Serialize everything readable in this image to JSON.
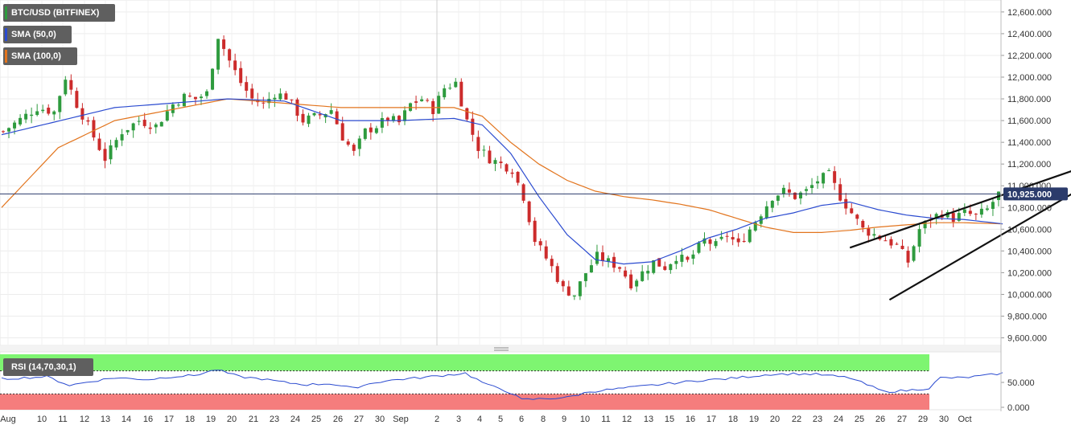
{
  "chart_data": {
    "type": "candlestick",
    "symbol": "BTC/USD (BITFINEX)",
    "legend": [
      {
        "label": "BTC/USD (BITFINEX)",
        "color": "#2e9b3e"
      },
      {
        "label": "SMA (50,0)",
        "color": "#2b4bd0"
      },
      {
        "label": "SMA (100,0)",
        "color": "#e2741d"
      }
    ],
    "last_price": "10,925.000",
    "last_price_value": 10925,
    "y_ticks": [
      "12,600.000",
      "12,400.000",
      "12,200.000",
      "12,000.000",
      "11,800.000",
      "11,600.000",
      "11,400.000",
      "11,200.000",
      "11,000.000",
      "10,800.000",
      "10,600.000",
      "10,400.000",
      "10,200.000",
      "10,000.000",
      "9,800.000",
      "9,600.000"
    ],
    "y_tick_values": [
      12600,
      12400,
      12200,
      12000,
      11800,
      11600,
      11400,
      11200,
      11000,
      10800,
      10600,
      10400,
      10200,
      10000,
      9800,
      9600
    ],
    "ylim": [
      9530,
      12710
    ],
    "x_labels": [
      "Aug",
      "10",
      "11",
      "12",
      "13",
      "14",
      "16",
      "17",
      "18",
      "19",
      "20",
      "21",
      "23",
      "24",
      "25",
      "26",
      "27",
      "30",
      "Sep",
      "2",
      "3",
      "4",
      "5",
      "6",
      "8",
      "9",
      "10",
      "11",
      "12",
      "13",
      "15",
      "16",
      "17",
      "18",
      "19",
      "20",
      "22",
      "23",
      "24",
      "25",
      "26",
      "27",
      "29",
      "30",
      "Oct"
    ],
    "price_path": [
      [
        0,
        11500
      ],
      [
        6,
        11720
      ],
      [
        9,
        11680
      ],
      [
        11,
        12000
      ],
      [
        13,
        11750
      ],
      [
        18,
        11250
      ],
      [
        21,
        11500
      ],
      [
        24,
        11600
      ],
      [
        27,
        11550
      ],
      [
        30,
        11750
      ],
      [
        32,
        11820
      ],
      [
        34,
        11800
      ],
      [
        36,
        11850
      ],
      [
        38,
        12380
      ],
      [
        40,
        12150
      ],
      [
        42,
        11950
      ],
      [
        44,
        11800
      ],
      [
        46,
        11750
      ],
      [
        48,
        11850
      ],
      [
        50,
        11820
      ],
      [
        53,
        11600
      ],
      [
        56,
        11650
      ],
      [
        58,
        11700
      ],
      [
        60,
        11450
      ],
      [
        62,
        11300
      ],
      [
        64,
        11500
      ],
      [
        66,
        11550
      ],
      [
        68,
        11620
      ],
      [
        70,
        11580
      ],
      [
        72,
        11750
      ],
      [
        74,
        11800
      ],
      [
        76,
        11700
      ],
      [
        78,
        11900
      ],
      [
        80,
        11950
      ],
      [
        82,
        11600
      ],
      [
        84,
        11350
      ],
      [
        86,
        11250
      ],
      [
        88,
        11200
      ],
      [
        90,
        11150
      ],
      [
        92,
        10900
      ],
      [
        94,
        10500
      ],
      [
        97,
        10250
      ],
      [
        99,
        10050
      ],
      [
        101,
        10000
      ],
      [
        103,
        10200
      ],
      [
        105,
        10350
      ],
      [
        107,
        10300
      ],
      [
        109,
        10250
      ],
      [
        111,
        10100
      ],
      [
        113,
        10200
      ],
      [
        115,
        10300
      ],
      [
        117,
        10250
      ],
      [
        119,
        10350
      ],
      [
        121,
        10300
      ],
      [
        124,
        10500
      ],
      [
        126,
        10450
      ],
      [
        128,
        10550
      ],
      [
        130,
        10450
      ],
      [
        132,
        10600
      ],
      [
        134,
        10750
      ],
      [
        136,
        10900
      ],
      [
        138,
        10950
      ],
      [
        140,
        10900
      ],
      [
        142,
        10950
      ],
      [
        144,
        11050
      ],
      [
        146,
        11100
      ],
      [
        148,
        10900
      ],
      [
        150,
        10750
      ],
      [
        152,
        10600
      ],
      [
        154,
        10550
      ],
      [
        156,
        10500
      ],
      [
        158,
        10450
      ],
      [
        160,
        10300
      ],
      [
        162,
        10600
      ],
      [
        164,
        10700
      ],
      [
        166,
        10750
      ],
      [
        168,
        10700
      ],
      [
        170,
        10750
      ],
      [
        172,
        10720
      ],
      [
        174,
        10780
      ],
      [
        176,
        10925
      ]
    ],
    "sma50": [
      [
        0,
        11470
      ],
      [
        20,
        11720
      ],
      [
        40,
        11800
      ],
      [
        50,
        11780
      ],
      [
        60,
        11600
      ],
      [
        70,
        11600
      ],
      [
        80,
        11620
      ],
      [
        85,
        11560
      ],
      [
        90,
        11300
      ],
      [
        95,
        10900
      ],
      [
        100,
        10550
      ],
      [
        105,
        10320
      ],
      [
        110,
        10280
      ],
      [
        115,
        10300
      ],
      [
        120,
        10400
      ],
      [
        125,
        10520
      ],
      [
        130,
        10600
      ],
      [
        135,
        10700
      ],
      [
        140,
        10750
      ],
      [
        145,
        10820
      ],
      [
        150,
        10850
      ],
      [
        155,
        10780
      ],
      [
        160,
        10730
      ],
      [
        165,
        10700
      ],
      [
        170,
        10690
      ],
      [
        177,
        10650
      ]
    ],
    "sma100": [
      [
        0,
        10800
      ],
      [
        10,
        11350
      ],
      [
        20,
        11600
      ],
      [
        30,
        11700
      ],
      [
        40,
        11800
      ],
      [
        50,
        11760
      ],
      [
        60,
        11720
      ],
      [
        70,
        11720
      ],
      [
        80,
        11720
      ],
      [
        85,
        11640
      ],
      [
        90,
        11400
      ],
      [
        95,
        11200
      ],
      [
        100,
        11050
      ],
      [
        105,
        10950
      ],
      [
        110,
        10900
      ],
      [
        115,
        10870
      ],
      [
        120,
        10830
      ],
      [
        125,
        10780
      ],
      [
        130,
        10700
      ],
      [
        135,
        10620
      ],
      [
        140,
        10570
      ],
      [
        145,
        10570
      ],
      [
        150,
        10590
      ],
      [
        155,
        10620
      ],
      [
        160,
        10640
      ],
      [
        165,
        10660
      ],
      [
        170,
        10660
      ],
      [
        177,
        10650
      ]
    ],
    "wedge_upper": [
      [
        150,
        10430
      ],
      [
        200,
        11330
      ]
    ],
    "wedge_lower": [
      [
        157,
        9950
      ],
      [
        200,
        11250
      ]
    ],
    "rsi": {
      "label": "RSI (14,70,30,1)",
      "overbought": 70,
      "oversold": 30,
      "ticks": [
        "50.000",
        "0.000"
      ],
      "tick_values": [
        50,
        0
      ],
      "path": [
        [
          0,
          56
        ],
        [
          8,
          60
        ],
        [
          12,
          45
        ],
        [
          16,
          52
        ],
        [
          20,
          58
        ],
        [
          26,
          55
        ],
        [
          30,
          60
        ],
        [
          34,
          62
        ],
        [
          38,
          72
        ],
        [
          42,
          60
        ],
        [
          46,
          56
        ],
        [
          50,
          50
        ],
        [
          54,
          46
        ],
        [
          58,
          48
        ],
        [
          62,
          40
        ],
        [
          66,
          50
        ],
        [
          70,
          55
        ],
        [
          74,
          58
        ],
        [
          78,
          62
        ],
        [
          82,
          66
        ],
        [
          86,
          45
        ],
        [
          88,
          40
        ],
        [
          90,
          32
        ],
        [
          92,
          20
        ],
        [
          96,
          22
        ],
        [
          100,
          24
        ],
        [
          104,
          34
        ],
        [
          108,
          38
        ],
        [
          112,
          42
        ],
        [
          116,
          46
        ],
        [
          120,
          50
        ],
        [
          124,
          54
        ],
        [
          128,
          56
        ],
        [
          132,
          60
        ],
        [
          136,
          64
        ],
        [
          140,
          65
        ],
        [
          144,
          64
        ],
        [
          148,
          60
        ],
        [
          150,
          58
        ],
        [
          152,
          50
        ],
        [
          156,
          34
        ],
        [
          160,
          36
        ],
        [
          164,
          40
        ],
        [
          166,
          58
        ],
        [
          170,
          58
        ],
        [
          174,
          62
        ],
        [
          177,
          66
        ]
      ]
    }
  }
}
